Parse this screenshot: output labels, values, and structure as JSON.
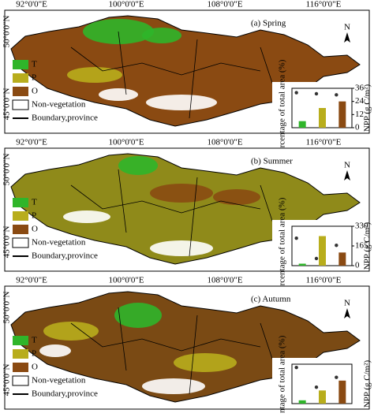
{
  "longitude_labels": [
    "92°0'0\"E",
    "100°0'0\"E",
    "108°0'0\"E",
    "116°0'0\"E"
  ],
  "latitude_labels": [
    "50°0'0\"N",
    "45°0'0\"N"
  ],
  "north": "N",
  "legend": [
    {
      "name": "T",
      "color": "#2fb52a"
    },
    {
      "name": "P",
      "color": "#b8ad1c"
    },
    {
      "name": "O",
      "color": "#8a4a12"
    },
    {
      "name": "Non-vegetation",
      "color": "#ffffff"
    },
    {
      "name": "Boundary,province",
      "color": "#000000"
    }
  ],
  "panels": [
    {
      "label": "(a) Spring",
      "base": "#8a4a12",
      "chart_data": {
        "type": "bar",
        "ylabel": "Percentage of total area (%)",
        "y2label": "NPP (g C/m²)",
        "ylim": [
          0,
          60
        ],
        "y2lim": [
          0,
          36
        ],
        "y2ticks": [
          0,
          12,
          24,
          36
        ],
        "series": [
          {
            "color": "#2fb52a",
            "values": [
              10,
              30,
              40
            ]
          },
          {
            "color": "#333333",
            "axis": "y2",
            "values": [
              32,
              31,
              30
            ]
          }
        ]
      }
    },
    {
      "label": "(b) Summer",
      "base": "#8f8a1a",
      "chart_data": {
        "type": "bar",
        "ylabel": "Percentage of total area (%)",
        "y2label": "NPP (g C/m²)",
        "ylim": [
          0,
          60
        ],
        "y2lim": [
          0,
          330
        ],
        "y2ticks": [
          0,
          165,
          330
        ],
        "series": [
          {
            "color": "#2fb52a",
            "values": [
              3,
              45,
              20
            ]
          },
          {
            "color": "#333333",
            "axis": "y2",
            "values": [
              230,
              60,
              170
            ]
          }
        ]
      }
    },
    {
      "label": "(c) Autumn",
      "base": "#7a4a14",
      "chart_data": {
        "type": "bar",
        "ylabel": "Percentage of total area (%)",
        "y2label": "NPP (g C/m²)",
        "ylim": [
          0,
          60
        ],
        "y2lim": [
          0,
          60
        ],
        "series": [
          {
            "color": "#2fb52a",
            "values": [
              5,
              20,
              35
            ]
          },
          {
            "color": "#333333",
            "axis": "y2",
            "values": [
              55,
              25,
              40
            ]
          }
        ]
      }
    }
  ]
}
